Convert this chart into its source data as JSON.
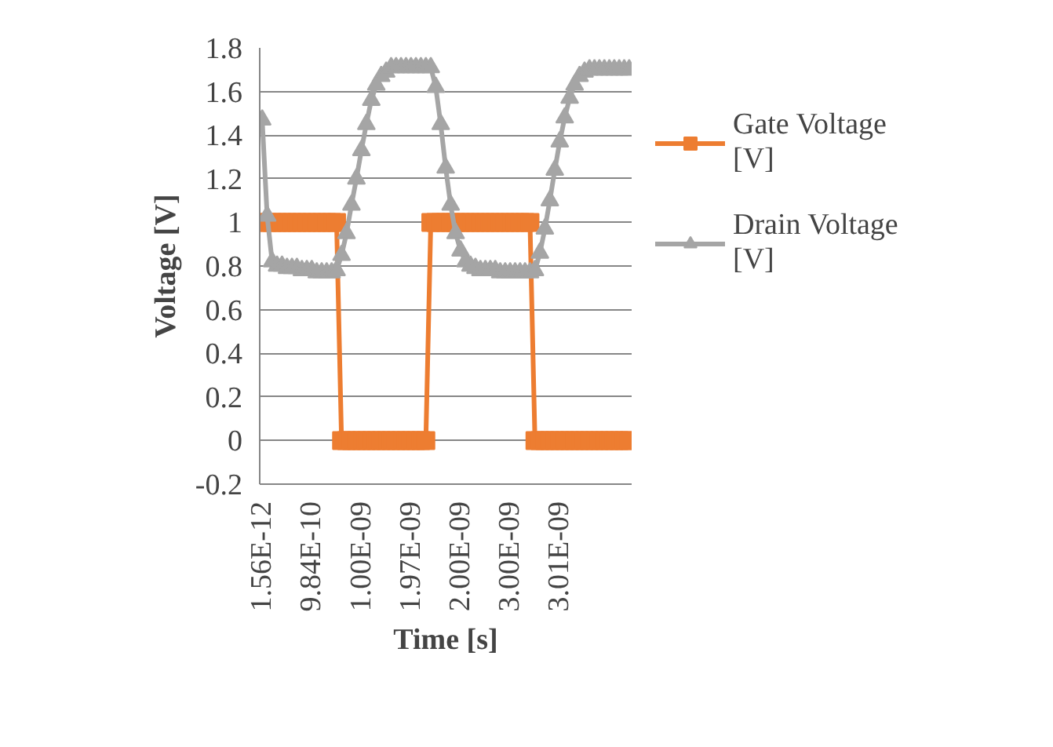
{
  "chart_data": {
    "type": "line",
    "xlabel": "Time [s]",
    "ylabel": "Voltage [V]",
    "categories": [
      "1.56E-12",
      null,
      null,
      null,
      null,
      null,
      null,
      null,
      null,
      null,
      "9.84E-10",
      null,
      null,
      null,
      null,
      null,
      null,
      null,
      null,
      null,
      "1.00E-09",
      null,
      null,
      null,
      null,
      null,
      null,
      null,
      null,
      null,
      "1.97E-09",
      null,
      null,
      null,
      null,
      null,
      null,
      null,
      null,
      null,
      "2.00E-09",
      null,
      null,
      null,
      null,
      null,
      null,
      null,
      null,
      null,
      "3.00E-09",
      null,
      null,
      null,
      null,
      null,
      null,
      null,
      null,
      null,
      "3.01E-09",
      null,
      null,
      null,
      null,
      null,
      null,
      null,
      null,
      null,
      null,
      null,
      null,
      null,
      null
    ],
    "series": [
      {
        "name": "Gate Voltage [V]",
        "color": "#ed7d31",
        "marker": "square",
        "values": [
          1,
          1,
          1,
          1,
          1,
          1,
          1,
          1,
          1,
          1,
          1,
          1,
          1,
          1,
          1,
          1,
          0,
          0,
          0,
          0,
          0,
          0,
          0,
          0,
          0,
          0,
          0,
          0,
          0,
          0,
          0,
          0,
          0,
          0,
          1,
          1,
          1,
          1,
          1,
          1,
          1,
          1,
          1,
          1,
          1,
          1,
          1,
          1,
          1,
          1,
          1,
          1,
          1,
          1,
          1,
          0,
          0,
          0,
          0,
          0,
          0,
          0,
          0,
          0,
          0,
          0,
          0,
          0,
          0,
          0,
          0,
          0,
          0,
          0,
          0
        ]
      },
      {
        "name": "Drain Voltage [V]",
        "color": "#a5a5a5",
        "marker": "triangle",
        "values": [
          1.47,
          1.03,
          0.82,
          0.8,
          0.8,
          0.79,
          0.79,
          0.79,
          0.78,
          0.78,
          0.78,
          0.77,
          0.77,
          0.77,
          0.77,
          0.78,
          0.85,
          0.95,
          1.08,
          1.2,
          1.33,
          1.45,
          1.56,
          1.63,
          1.67,
          1.69,
          1.71,
          1.71,
          1.71,
          1.71,
          1.71,
          1.71,
          1.71,
          1.71,
          1.71,
          1.62,
          1.45,
          1.25,
          1.08,
          0.95,
          0.87,
          0.82,
          0.8,
          0.79,
          0.78,
          0.78,
          0.78,
          0.78,
          0.77,
          0.77,
          0.77,
          0.77,
          0.77,
          0.77,
          0.77,
          0.78,
          0.86,
          0.97,
          1.1,
          1.24,
          1.37,
          1.48,
          1.57,
          1.63,
          1.67,
          1.69,
          1.7,
          1.7,
          1.7,
          1.7,
          1.7,
          1.7,
          1.7,
          1.7,
          1.7
        ]
      }
    ],
    "ylim": [
      -0.2,
      1.8
    ],
    "yticks": [
      -0.2,
      0,
      0.2,
      0.4,
      0.6,
      0.8,
      1,
      1.2,
      1.4,
      1.6,
      1.8
    ],
    "grid": "y",
    "legend": "right"
  }
}
